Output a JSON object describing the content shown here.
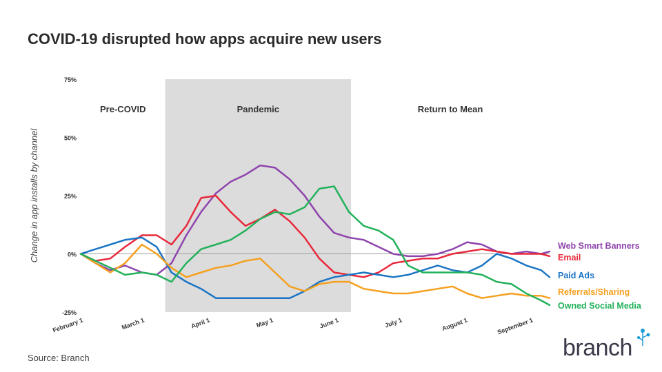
{
  "title": "COVID-19 disrupted how apps acquire new users",
  "source": "Source: Branch",
  "logo_text": "branch",
  "colors": {
    "web_smart_banners": "#8e44ad",
    "email": "#e8283a",
    "paid_ads": "#1b75c4",
    "referrals_sharing": "#f5a020",
    "owned_social_media": "#22b15a",
    "band": "#dcdcdc"
  },
  "chart_data": {
    "type": "line",
    "title": "COVID-19 disrupted how apps acquire new users",
    "ylabel": "Change in app installs by channel",
    "xlabel": "",
    "ylim": [
      -25,
      75
    ],
    "xlim": [
      "2020-02-01",
      "2020-09-10"
    ],
    "y_ticks": [
      "75%",
      "50%",
      "25%",
      "0%",
      "-25%"
    ],
    "x_ticks": [
      "February 1",
      "March 1",
      "April 1",
      "May 1",
      "June 1",
      "July 1",
      "August 1",
      "September 1"
    ],
    "regions": [
      {
        "label": "Pre-COVID",
        "start": "2020-02-01",
        "end": "2020-03-12"
      },
      {
        "label": "Pandemic",
        "start": "2020-03-12",
        "end": "2020-06-08",
        "shaded": true
      },
      {
        "label": "Return to Mean",
        "start": "2020-06-08",
        "end": "2020-09-10"
      }
    ],
    "x": [
      "2020-02-01",
      "2020-02-08",
      "2020-02-15",
      "2020-02-22",
      "2020-03-01",
      "2020-03-08",
      "2020-03-15",
      "2020-03-22",
      "2020-03-29",
      "2020-04-05",
      "2020-04-12",
      "2020-04-19",
      "2020-04-26",
      "2020-05-03",
      "2020-05-10",
      "2020-05-17",
      "2020-05-24",
      "2020-05-31",
      "2020-06-07",
      "2020-06-14",
      "2020-06-21",
      "2020-06-28",
      "2020-07-05",
      "2020-07-12",
      "2020-07-19",
      "2020-07-26",
      "2020-08-02",
      "2020-08-09",
      "2020-08-16",
      "2020-08-23",
      "2020-08-30",
      "2020-09-06",
      "2020-09-10"
    ],
    "series": [
      {
        "name": "Web Smart Banners",
        "color": "#8e44ad",
        "values": [
          0,
          -4,
          -7,
          -5,
          -8,
          -9,
          -4,
          8,
          18,
          26,
          31,
          34,
          38,
          37,
          32,
          25,
          16,
          9,
          7,
          6,
          3,
          0,
          -1,
          -1,
          0,
          2,
          5,
          4,
          1,
          0,
          1,
          0,
          1
        ]
      },
      {
        "name": "Email",
        "color": "#e8283a",
        "values": [
          0,
          -3,
          -2,
          3,
          8,
          8,
          4,
          12,
          24,
          25,
          18,
          12,
          15,
          19,
          14,
          7,
          -2,
          -8,
          -9,
          -10,
          -8,
          -4,
          -3,
          -2,
          -2,
          0,
          1,
          2,
          1,
          0,
          0,
          0,
          -1
        ]
      },
      {
        "name": "Paid Ads",
        "color": "#1b75c4",
        "values": [
          0,
          2,
          4,
          6,
          7,
          3,
          -8,
          -12,
          -15,
          -19,
          -19,
          -19,
          -19,
          -19,
          -19,
          -16,
          -12,
          -10,
          -9,
          -8,
          -9,
          -10,
          -9,
          -7,
          -5,
          -7,
          -8,
          -5,
          0,
          -2,
          -5,
          -7,
          -10
        ]
      },
      {
        "name": "Referrals/Sharing",
        "color": "#f5a020",
        "values": [
          0,
          -4,
          -8,
          -4,
          4,
          0,
          -6,
          -10,
          -8,
          -6,
          -5,
          -3,
          -2,
          -8,
          -14,
          -16,
          -13,
          -12,
          -12,
          -15,
          -16,
          -17,
          -17,
          -16,
          -15,
          -14,
          -17,
          -19,
          -18,
          -17,
          -18,
          -18,
          -19
        ]
      },
      {
        "name": "Owned Social Media",
        "color": "#22b15a",
        "values": [
          0,
          -3,
          -6,
          -9,
          -8,
          -9,
          -12,
          -4,
          2,
          4,
          6,
          10,
          15,
          18,
          17,
          20,
          28,
          29,
          18,
          12,
          10,
          6,
          -5,
          -8,
          -8,
          -8,
          -8,
          -9,
          -12,
          -13,
          -17,
          -20,
          -22
        ]
      }
    ]
  }
}
